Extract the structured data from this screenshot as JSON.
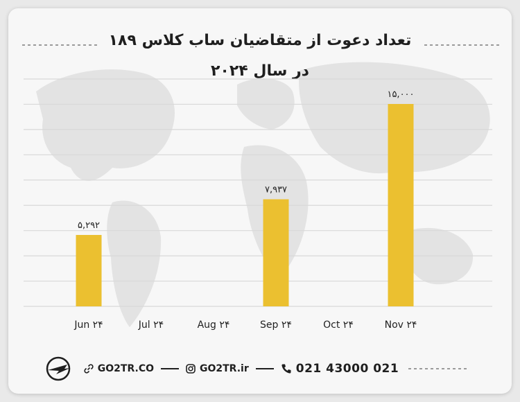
{
  "title_line1": "تعداد دعوت از متقاضیان ساب کلاس ۱۸۹",
  "title_line2": "در سال ۲۰۲۴",
  "chart_data": {
    "type": "bar",
    "categories": [
      "Jun ۲۴",
      "Jul ۲۴",
      "Aug ۲۴",
      "Sep ۲۴",
      "Oct ۲۴",
      "Nov ۲۴"
    ],
    "values": [
      5292,
      0,
      0,
      7937,
      0,
      15000
    ],
    "value_labels": [
      "۵,۲۹۲",
      "",
      "",
      "۷,۹۳۷",
      "",
      "۱۵,۰۰۰"
    ],
    "ylim": [
      0,
      15000
    ],
    "grid": true,
    "bar_color": "#ebc030"
  },
  "footer": {
    "website": "GO2TR.CO",
    "instagram": "GO2TR.ir",
    "phone": "021 43000 021",
    "icons": [
      "logo-plane-icon",
      "link-icon",
      "instagram-icon",
      "phone-icon"
    ]
  },
  "colors": {
    "bar": "#ebc030",
    "grid": "#d8d8d8",
    "text": "#1f1f1f"
  }
}
